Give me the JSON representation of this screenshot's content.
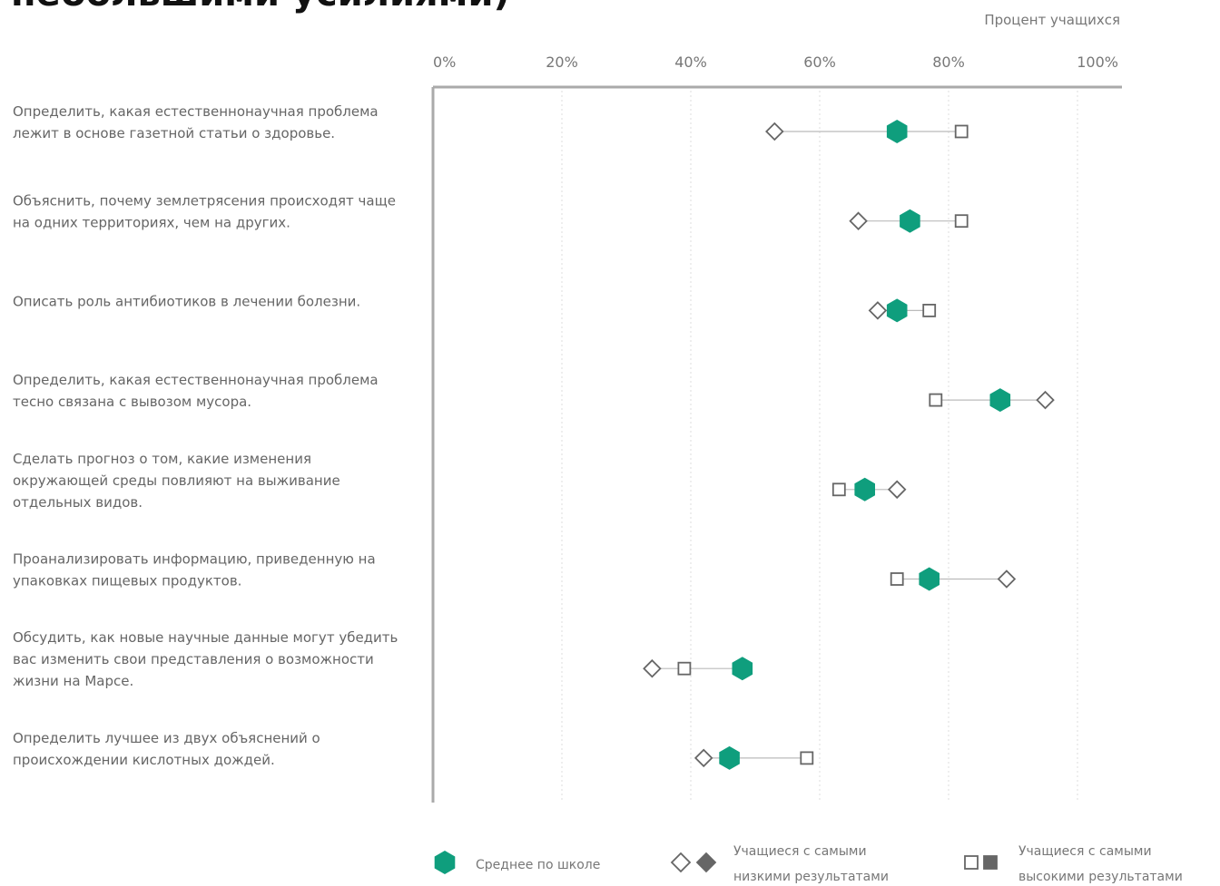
{
  "header": {
    "title": "небольшими усилиями)"
  },
  "chart_data": {
    "type": "scatter",
    "title": "небольшими усилиями)",
    "xlabel": "Процент учащихся",
    "xlim": [
      0,
      100
    ],
    "x_ticks": [
      "0%",
      "20%",
      "40%",
      "60%",
      "80%",
      "100%"
    ],
    "grid": true,
    "categories": [
      [
        "Определить, какая естественнонаучная проблема",
        "лежит в основе газетной статьи о здоровье."
      ],
      [
        "Объяснить, почему землетрясения происходят чаще",
        "на одних территориях, чем на других."
      ],
      [
        "Описать роль антибиотиков в лечении болезни."
      ],
      [
        "Определить, какая естественнонаучная проблема",
        "тесно связана с вывозом мусора."
      ],
      [
        "Сделать прогноз о том, какие изменения",
        "окружающей среды повлияют на выживание",
        "отдельных видов."
      ],
      [
        "Проанализировать информацию, приведенную на",
        "упаковках пищевых продуктов."
      ],
      [
        "Обсудить, как новые научные данные могут убедить",
        "вас изменить свои представления о возможности",
        "жизни на Марсе."
      ],
      [
        "Определить лучшее из двух объяснений о",
        "происхождении кислотных дождей."
      ]
    ],
    "series": [
      {
        "key": "mean",
        "values": [
          72,
          74,
          72,
          88,
          67,
          77,
          48,
          46
        ]
      },
      {
        "key": "low",
        "values": [
          53,
          66,
          69,
          95,
          72,
          89,
          34,
          42
        ]
      },
      {
        "key": "high",
        "values": [
          82,
          82,
          77,
          78,
          63,
          72,
          39,
          58
        ]
      }
    ],
    "legend": {
      "placement": "bottom",
      "mean_label": "Среднее по школе",
      "low_label": [
        "Учащиеся с самыми",
        "низкими результатами"
      ],
      "high_label": [
        "Учащиеся с самыми",
        "высокими результатами"
      ]
    },
    "colors": {
      "mean": "#0f9e7d",
      "marker_outline": "#666666",
      "marker_filled": "#666666",
      "range_line": "#bbbbbb",
      "axis": "#aaaaaa",
      "grid": "#dddddd"
    }
  }
}
